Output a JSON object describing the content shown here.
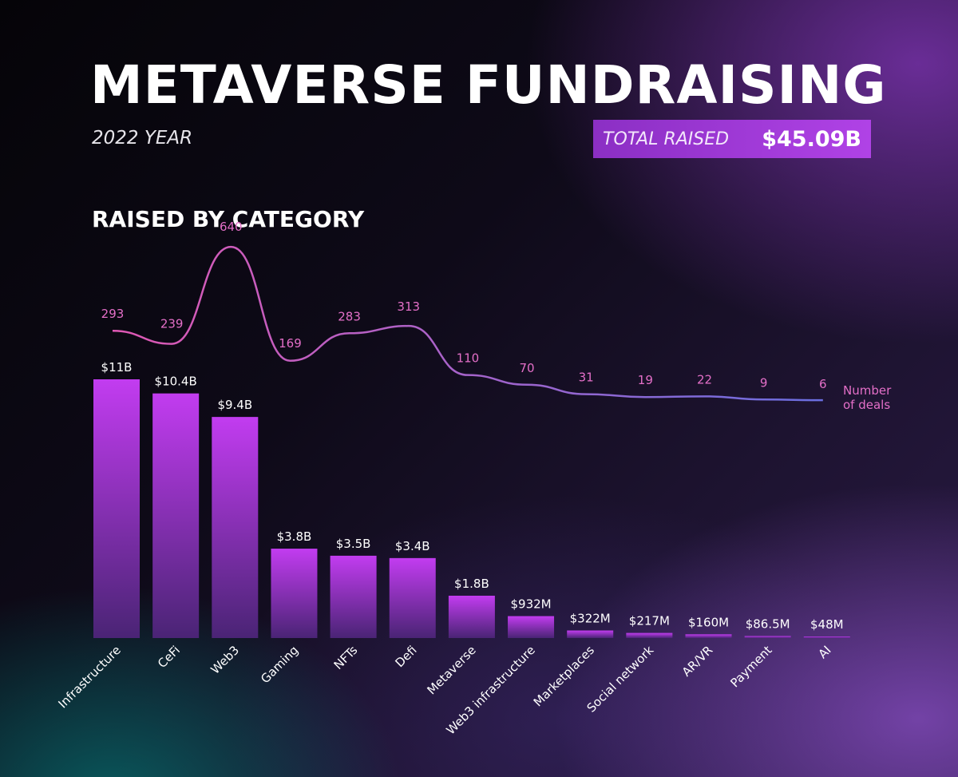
{
  "header": {
    "title": "METAVERSE FUNDRAISING",
    "subtitle": "2022 YEAR",
    "total_label": "TOTAL RAISED",
    "total_value": "$45.09B"
  },
  "section_title": "RAISED BY CATEGORY",
  "colors": {
    "bar_top": "#c23cf0",
    "bar_bottom": "#4a2475",
    "line_start": "#e058b4",
    "line_end": "#6a6ee0",
    "deal_label": "#e46fc8",
    "accent_box": "#a33ad9"
  },
  "chart_data": {
    "type": "bar",
    "title": "RAISED BY CATEGORY",
    "categories": [
      "Infrastructure",
      "CeFi",
      "Web3",
      "Gaming",
      "NFTs",
      "Defi",
      "Metaverse",
      "Web3 infrastructure",
      "Marketplaces",
      "Social network",
      "AR/VR",
      "Payment",
      "AI"
    ],
    "series": [
      {
        "type": "bar",
        "values": [
          11000,
          10400,
          9400,
          3800,
          3500,
          3400,
          1800,
          932,
          322,
          217,
          160,
          86.5,
          48
        ],
        "value_labels": [
          "$11B",
          "$10.4B",
          "$9.4B",
          "$3.8B",
          "$3.5B",
          "$3.4B",
          "$1.8B",
          "$932M",
          "$322M",
          "$217M",
          "$160M",
          "$86.5M",
          "$48M"
        ]
      },
      {
        "name": "Number of deals",
        "type": "line",
        "values": [
          293,
          239,
          640,
          169,
          283,
          313,
          110,
          70,
          31,
          19,
          22,
          9,
          6
        ]
      }
    ],
    "legend_label": [
      "Number",
      "of deals"
    ],
    "ylim": [
      0,
      11000
    ],
    "grid": false
  }
}
